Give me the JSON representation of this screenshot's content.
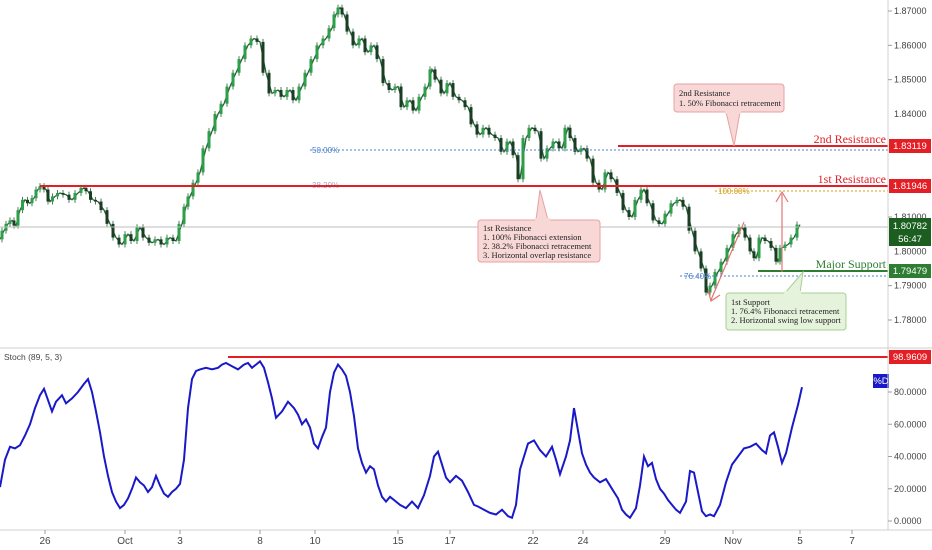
{
  "chart_data": [
    {
      "type": "candlestick",
      "symbol_hint": "price panel",
      "y_ticks": [
        "1.87000",
        "1.86000",
        "1.85000",
        "1.84000",
        "1.83000",
        "1.82000",
        "1.81000",
        "1.80000",
        "1.79000",
        "1.78000"
      ],
      "x_ticks": [
        "26",
        "Oct",
        "3",
        "8",
        "10",
        "15",
        "17",
        "22",
        "24",
        "29",
        "Nov",
        "5",
        "7"
      ],
      "ylim": [
        1.7725,
        1.8735
      ],
      "price_path": [
        [
          0,
          1.8035
        ],
        [
          4,
          1.806
        ],
        [
          8,
          1.808
        ],
        [
          12,
          1.809
        ],
        [
          16,
          1.8075
        ],
        [
          20,
          1.812
        ],
        [
          25,
          1.815
        ],
        [
          30,
          1.814
        ],
        [
          34,
          1.8155
        ],
        [
          38,
          1.818
        ],
        [
          42,
          1.819
        ],
        [
          46,
          1.818
        ],
        [
          50,
          1.8145
        ],
        [
          55,
          1.816
        ],
        [
          60,
          1.817
        ],
        [
          66,
          1.8165
        ],
        [
          72,
          1.815
        ],
        [
          78,
          1.817
        ],
        [
          84,
          1.8185
        ],
        [
          88,
          1.8175
        ],
        [
          93,
          1.815
        ],
        [
          98,
          1.8145
        ],
        [
          104,
          1.812
        ],
        [
          110,
          1.808
        ],
        [
          116,
          1.804
        ],
        [
          122,
          1.802
        ],
        [
          128,
          1.805
        ],
        [
          134,
          1.803
        ],
        [
          140,
          1.807
        ],
        [
          146,
          1.804
        ],
        [
          152,
          1.8025
        ],
        [
          158,
          1.8035
        ],
        [
          164,
          1.802
        ],
        [
          170,
          1.804
        ],
        [
          176,
          1.803
        ],
        [
          182,
          1.808
        ],
        [
          186,
          1.813
        ],
        [
          190,
          1.816
        ],
        [
          196,
          1.82
        ],
        [
          200,
          1.823
        ],
        [
          206,
          1.83
        ],
        [
          212,
          1.835
        ],
        [
          218,
          1.84
        ],
        [
          224,
          1.843
        ],
        [
          230,
          1.848
        ],
        [
          236,
          1.852
        ],
        [
          242,
          1.856
        ],
        [
          248,
          1.86
        ],
        [
          254,
          1.862
        ],
        [
          260,
          1.861
        ],
        [
          266,
          1.852
        ],
        [
          272,
          1.846
        ],
        [
          278,
          1.847
        ],
        [
          284,
          1.845
        ],
        [
          290,
          1.847
        ],
        [
          296,
          1.844
        ],
        [
          302,
          1.848
        ],
        [
          308,
          1.852
        ],
        [
          314,
          1.856
        ],
        [
          320,
          1.86
        ],
        [
          326,
          1.862
        ],
        [
          332,
          1.865
        ],
        [
          336,
          1.869
        ],
        [
          340,
          1.871
        ],
        [
          344,
          1.869
        ],
        [
          350,
          1.864
        ],
        [
          356,
          1.86
        ],
        [
          362,
          1.862
        ],
        [
          368,
          1.858
        ],
        [
          374,
          1.86
        ],
        [
          380,
          1.856
        ],
        [
          386,
          1.849
        ],
        [
          392,
          1.847
        ],
        [
          398,
          1.848
        ],
        [
          404,
          1.842
        ],
        [
          410,
          1.844
        ],
        [
          416,
          1.841
        ],
        [
          422,
          1.845
        ],
        [
          428,
          1.848
        ],
        [
          432,
          1.853
        ],
        [
          438,
          1.85
        ],
        [
          444,
          1.846
        ],
        [
          450,
          1.849
        ],
        [
          456,
          1.845
        ],
        [
          462,
          1.844
        ],
        [
          468,
          1.842
        ],
        [
          474,
          1.837
        ],
        [
          480,
          1.834
        ],
        [
          486,
          1.836
        ],
        [
          492,
          1.834
        ],
        [
          498,
          1.833
        ],
        [
          504,
          1.829
        ],
        [
          510,
          1.832
        ],
        [
          516,
          1.828
        ],
        [
          520,
          1.821
        ],
        [
          526,
          1.833
        ],
        [
          532,
          1.836
        ],
        [
          538,
          1.835
        ],
        [
          544,
          1.827
        ],
        [
          550,
          1.83
        ],
        [
          556,
          1.832
        ],
        [
          562,
          1.83
        ],
        [
          568,
          1.836
        ],
        [
          572,
          1.833
        ],
        [
          578,
          1.829
        ],
        [
          584,
          1.83
        ],
        [
          590,
          1.827
        ],
        [
          596,
          1.82
        ],
        [
          602,
          1.818
        ],
        [
          608,
          1.823
        ],
        [
          614,
          1.821
        ],
        [
          620,
          1.817
        ],
        [
          626,
          1.812
        ],
        [
          632,
          1.81
        ],
        [
          638,
          1.815
        ],
        [
          644,
          1.818
        ],
        [
          650,
          1.814
        ],
        [
          656,
          1.809
        ],
        [
          662,
          1.808
        ],
        [
          668,
          1.811
        ],
        [
          674,
          1.814
        ],
        [
          680,
          1.815
        ],
        [
          686,
          1.813
        ],
        [
          692,
          1.806
        ],
        [
          698,
          1.8
        ],
        [
          704,
          1.795
        ],
        [
          708,
          1.788
        ],
        [
          712,
          1.79
        ],
        [
          718,
          1.794
        ],
        [
          724,
          1.797
        ],
        [
          730,
          1.801
        ],
        [
          736,
          1.805
        ],
        [
          742,
          1.807
        ],
        [
          748,
          1.804
        ],
        [
          752,
          1.8
        ],
        [
          756,
          1.798
        ],
        [
          762,
          1.804
        ],
        [
          768,
          1.803
        ],
        [
          774,
          1.801
        ],
        [
          778,
          1.797
        ],
        [
          782,
          1.801
        ],
        [
          788,
          1.802
        ],
        [
          794,
          1.804
        ],
        [
          800,
          1.8078
        ]
      ],
      "levels": [
        {
          "label": "2nd Resistance",
          "value": "1.83119",
          "color": "#e31e24",
          "text_color": "#e31e24"
        },
        {
          "label": "1st Resistance",
          "value": "1.81946",
          "color": "#e31e24",
          "text_color": "#e31e24"
        },
        {
          "label": "Major Support",
          "value": "1.79479",
          "color": "#2e7d32",
          "text_color": "#2e7d32"
        }
      ],
      "last_price": {
        "value": "1.80782",
        "countdown": "56:47"
      },
      "fib_labels": {
        "a": "50.00%",
        "b": "38.20%",
        "c": "100.00%",
        "d": "76.40%"
      },
      "annotations": [
        {
          "lines": [
            "2nd Resistance",
            "1. 50% Fibonacci retracement"
          ]
        },
        {
          "lines": [
            "1st Resistance",
            "1. 100% Fibonacci extension",
            "2. 38.2% Fibonacci retracement",
            "3. Horizontal overlap resistance"
          ]
        },
        {
          "lines": [
            "1st Support",
            "1. 76.4% Fibonacci retracement",
            "2. Horizontal swing low support"
          ]
        }
      ]
    },
    {
      "type": "line",
      "label": "Stoch (89, 5, 3)",
      "series_tag": "%D",
      "y_ticks": [
        "80.0000",
        "60.0000",
        "40.0000",
        "20.0000",
        "0.0000"
      ],
      "ylim": [
        0,
        100
      ],
      "level": {
        "value": "98.9609",
        "color": "#e31e24"
      },
      "line_color": "#1a19c7",
      "path": [
        [
          0,
          21
        ],
        [
          5,
          38
        ],
        [
          10,
          46
        ],
        [
          15,
          45
        ],
        [
          20,
          47
        ],
        [
          25,
          53
        ],
        [
          30,
          60
        ],
        [
          35,
          70
        ],
        [
          40,
          78
        ],
        [
          44,
          82
        ],
        [
          48,
          75
        ],
        [
          52,
          68
        ],
        [
          56,
          74
        ],
        [
          62,
          78
        ],
        [
          66,
          73
        ],
        [
          72,
          76
        ],
        [
          78,
          80
        ],
        [
          84,
          85
        ],
        [
          88,
          88
        ],
        [
          92,
          80
        ],
        [
          96,
          68
        ],
        [
          100,
          55
        ],
        [
          104,
          40
        ],
        [
          108,
          28
        ],
        [
          112,
          18
        ],
        [
          116,
          12
        ],
        [
          120,
          8
        ],
        [
          124,
          10
        ],
        [
          128,
          14
        ],
        [
          132,
          20
        ],
        [
          136,
          27
        ],
        [
          140,
          24
        ],
        [
          144,
          22
        ],
        [
          148,
          18
        ],
        [
          152,
          21
        ],
        [
          156,
          28
        ],
        [
          160,
          22
        ],
        [
          164,
          17
        ],
        [
          168,
          15
        ],
        [
          172,
          18
        ],
        [
          176,
          20
        ],
        [
          180,
          23
        ],
        [
          184,
          38
        ],
        [
          188,
          70
        ],
        [
          192,
          88
        ],
        [
          196,
          93
        ],
        [
          200,
          94
        ],
        [
          206,
          95
        ],
        [
          212,
          94
        ],
        [
          218,
          95
        ],
        [
          222,
          97
        ],
        [
          226,
          98
        ],
        [
          232,
          96
        ],
        [
          238,
          94
        ],
        [
          244,
          97
        ],
        [
          248,
          98
        ],
        [
          252,
          95
        ],
        [
          256,
          97
        ],
        [
          260,
          99
        ],
        [
          264,
          95
        ],
        [
          268,
          86
        ],
        [
          272,
          76
        ],
        [
          276,
          64
        ],
        [
          282,
          68
        ],
        [
          288,
          74
        ],
        [
          294,
          70
        ],
        [
          298,
          66
        ],
        [
          302,
          60
        ],
        [
          306,
          63
        ],
        [
          310,
          58
        ],
        [
          314,
          48
        ],
        [
          318,
          45
        ],
        [
          322,
          52
        ],
        [
          326,
          58
        ],
        [
          330,
          80
        ],
        [
          334,
          92
        ],
        [
          338,
          97
        ],
        [
          342,
          94
        ],
        [
          346,
          90
        ],
        [
          350,
          80
        ],
        [
          354,
          65
        ],
        [
          358,
          45
        ],
        [
          362,
          36
        ],
        [
          366,
          30
        ],
        [
          370,
          34
        ],
        [
          374,
          32
        ],
        [
          378,
          22
        ],
        [
          382,
          15
        ],
        [
          386,
          12
        ],
        [
          390,
          15
        ],
        [
          394,
          13
        ],
        [
          400,
          10
        ],
        [
          406,
          8
        ],
        [
          412,
          12
        ],
        [
          418,
          8
        ],
        [
          424,
          16
        ],
        [
          430,
          28
        ],
        [
          434,
          40
        ],
        [
          438,
          43
        ],
        [
          442,
          35
        ],
        [
          446,
          27
        ],
        [
          450,
          24
        ],
        [
          456,
          28
        ],
        [
          462,
          25
        ],
        [
          468,
          18
        ],
        [
          474,
          10
        ],
        [
          478,
          9
        ],
        [
          484,
          7
        ],
        [
          490,
          5
        ],
        [
          496,
          4
        ],
        [
          502,
          7
        ],
        [
          508,
          3
        ],
        [
          512,
          2
        ],
        [
          516,
          10
        ],
        [
          520,
          32
        ],
        [
          524,
          40
        ],
        [
          528,
          48
        ],
        [
          534,
          50
        ],
        [
          540,
          44
        ],
        [
          546,
          40
        ],
        [
          552,
          46
        ],
        [
          556,
          38
        ],
        [
          560,
          29
        ],
        [
          566,
          40
        ],
        [
          570,
          50
        ],
        [
          574,
          70
        ],
        [
          578,
          56
        ],
        [
          582,
          42
        ],
        [
          586,
          35
        ],
        [
          590,
          30
        ],
        [
          594,
          27
        ],
        [
          600,
          24
        ],
        [
          606,
          26
        ],
        [
          612,
          20
        ],
        [
          618,
          14
        ],
        [
          622,
          7
        ],
        [
          626,
          4
        ],
        [
          630,
          2
        ],
        [
          636,
          8
        ],
        [
          640,
          22
        ],
        [
          644,
          40
        ],
        [
          648,
          34
        ],
        [
          652,
          36
        ],
        [
          656,
          26
        ],
        [
          660,
          20
        ],
        [
          664,
          17
        ],
        [
          668,
          13
        ],
        [
          672,
          10
        ],
        [
          676,
          7
        ],
        [
          680,
          5
        ],
        [
          686,
          12
        ],
        [
          690,
          31
        ],
        [
          694,
          30
        ],
        [
          698,
          18
        ],
        [
          702,
          6
        ],
        [
          706,
          3
        ],
        [
          710,
          4
        ],
        [
          714,
          3
        ],
        [
          720,
          10
        ],
        [
          726,
          24
        ],
        [
          732,
          35
        ],
        [
          738,
          40
        ],
        [
          744,
          45
        ],
        [
          750,
          46
        ],
        [
          756,
          48
        ],
        [
          762,
          44
        ],
        [
          766,
          42
        ],
        [
          770,
          53
        ],
        [
          774,
          55
        ],
        [
          778,
          46
        ],
        [
          782,
          36
        ],
        [
          786,
          42
        ],
        [
          792,
          58
        ],
        [
          798,
          72
        ],
        [
          802,
          83
        ]
      ]
    }
  ]
}
